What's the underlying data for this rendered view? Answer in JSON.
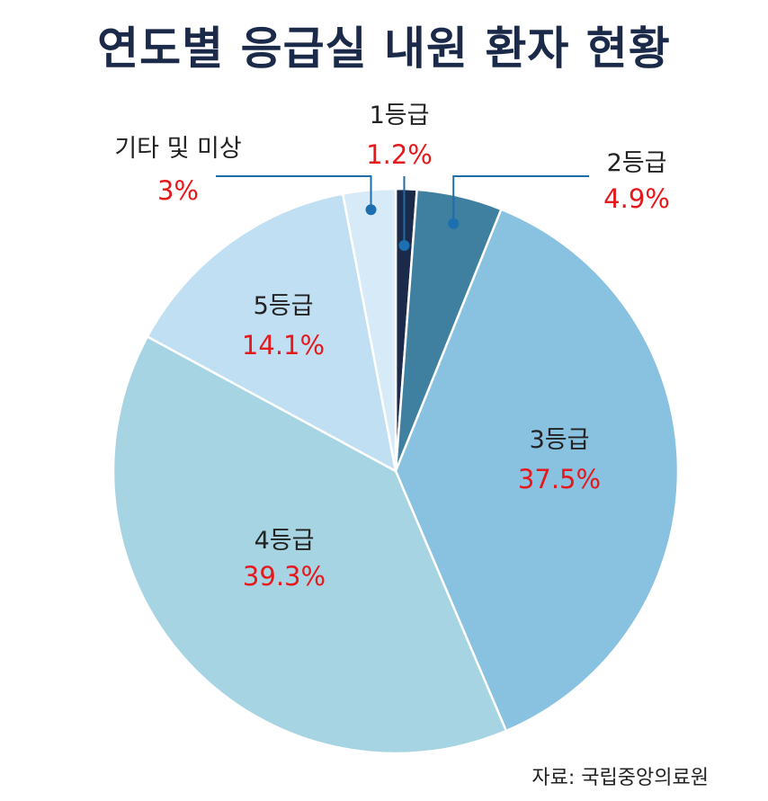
{
  "title": "연도별 응급실 내원 환자 현황",
  "source": "자료: 국립중앙의료원",
  "chart_data": {
    "type": "pie",
    "title": "연도별 응급실 내원 환자 현황",
    "slices": [
      {
        "label": "1등급",
        "value": 1.2,
        "value_label": "1.2%",
        "color": "#1c2a4a"
      },
      {
        "label": "2등급",
        "value": 4.9,
        "value_label": "4.9%",
        "color": "#3f7fa0"
      },
      {
        "label": "3등급",
        "value": 37.5,
        "value_label": "37.5%",
        "color": "#89c1e0"
      },
      {
        "label": "4등급",
        "value": 39.3,
        "value_label": "39.3%",
        "color": "#a7d4e2"
      },
      {
        "label": "5등급",
        "value": 14.1,
        "value_label": "14.1%",
        "color": "#c0dff3"
      },
      {
        "label": "기타 및 미상",
        "value": 3,
        "value_label": "3%",
        "color": "#d7eaf8"
      }
    ]
  }
}
